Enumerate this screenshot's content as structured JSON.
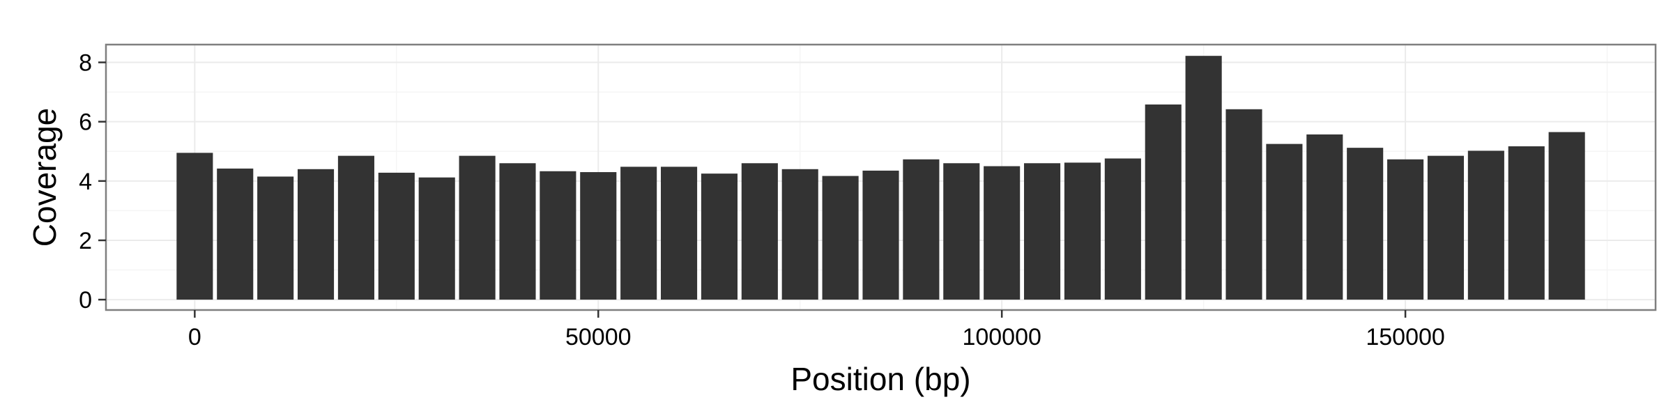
{
  "chart_data": {
    "type": "bar",
    "xlabel": "Position (bp)",
    "ylabel": "Coverage",
    "bin_width": 5000,
    "x": [
      0,
      5000,
      10000,
      15000,
      20000,
      25000,
      30000,
      35000,
      40000,
      45000,
      50000,
      55000,
      60000,
      65000,
      70000,
      75000,
      80000,
      85000,
      90000,
      95000,
      100000,
      105000,
      110000,
      115000,
      120000,
      125000,
      130000,
      135000,
      140000,
      145000,
      150000,
      155000,
      160000,
      165000,
      170000
    ],
    "values": [
      4.95,
      4.42,
      4.15,
      4.4,
      4.85,
      4.28,
      4.12,
      4.85,
      4.6,
      4.33,
      4.3,
      4.48,
      4.48,
      4.25,
      4.6,
      4.4,
      4.17,
      4.35,
      4.73,
      4.6,
      4.5,
      4.6,
      4.62,
      4.76,
      6.58,
      8.22,
      6.42,
      5.25,
      5.57,
      5.12,
      4.73,
      4.85,
      5.02,
      5.17,
      5.65
    ],
    "xlim": [
      -11000,
      181000
    ],
    "ylim": [
      -0.35,
      8.6
    ],
    "x_ticks": [
      0,
      50000,
      100000,
      150000
    ],
    "x_tick_labels": [
      "0",
      "50000",
      "100000",
      "150000"
    ],
    "y_ticks": [
      0,
      2,
      4,
      6,
      8
    ],
    "y_tick_labels": [
      "0",
      "2",
      "4",
      "6",
      "8"
    ],
    "grid": true,
    "colors": {
      "bar": "#333333",
      "grid_major": "#ebebeb",
      "grid_minor": "#f5f5f5",
      "panel_border": "#7f7f7f",
      "tick": "#333333"
    }
  }
}
